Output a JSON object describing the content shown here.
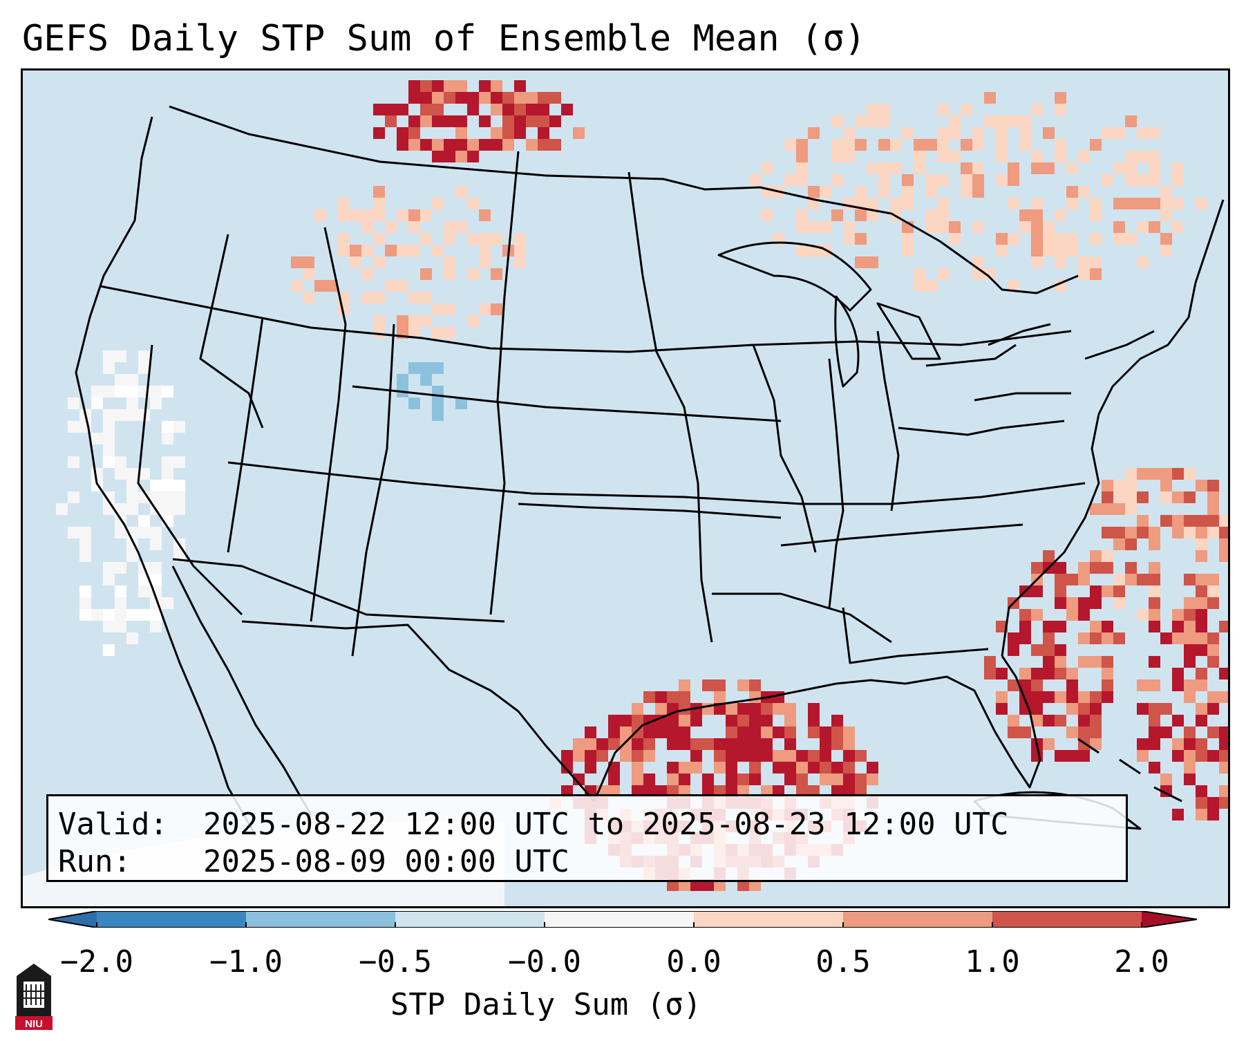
{
  "title": "GEFS Daily STP Sum of Ensemble Mean (σ)",
  "info": {
    "valid_label": "Valid:",
    "valid_value": "2025-08-22 12:00 UTC to 2025-08-23 12:00 UTC",
    "run_label": "Run:",
    "run_value": "2025-08-09 00:00 UTC"
  },
  "colorbar": {
    "label": "STP Daily Sum (σ)",
    "ticks": [
      "−2.0",
      "−1.0",
      "−0.5",
      "−0.0",
      "0.0",
      "0.5",
      "1.0",
      "2.0"
    ],
    "bin_colors": [
      "#3a86c0",
      "#8cc1dd",
      "#d0e4f0",
      "#f6f6f6",
      "#fbd6c3",
      "#ee9b7f",
      "#cf5449",
      "#b5172d"
    ],
    "extend_low_color": "#2e6faa",
    "extend_high_color": "#a50f2a"
  },
  "map": {
    "ocean_color": "#d0e4f0",
    "background_color": "#d0e4f0",
    "region": "Continental United States",
    "highlights": [
      {
        "area": "western-gulf-of-mexico",
        "level": "high"
      },
      {
        "area": "southwest-atlantic-off-georgia-carolina",
        "level": "high"
      },
      {
        "area": "southern-saskatchewan",
        "level": "high"
      },
      {
        "area": "western-atlantic-bahamas",
        "level": "high"
      },
      {
        "area": "central-atlantic-coast",
        "level": "moderate"
      },
      {
        "area": "quebec-ontario",
        "level": "low"
      },
      {
        "area": "montana-wyoming",
        "level": "low"
      },
      {
        "area": "colorado-foothills",
        "level": "negative-low"
      },
      {
        "area": "pacific-coast-california",
        "level": "neutral"
      }
    ]
  },
  "logo": {
    "text": "NIU"
  }
}
